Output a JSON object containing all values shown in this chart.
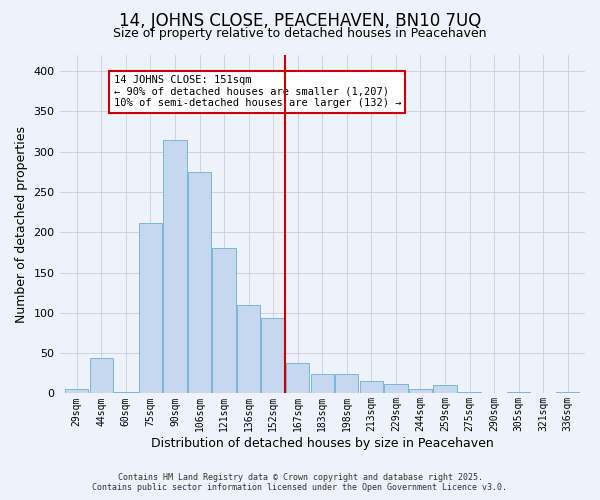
{
  "title": "14, JOHNS CLOSE, PEACEHAVEN, BN10 7UQ",
  "subtitle": "Size of property relative to detached houses in Peacehaven",
  "xlabel": "Distribution of detached houses by size in Peacehaven",
  "ylabel": "Number of detached properties",
  "bar_values": [
    5,
    44,
    2,
    212,
    315,
    275,
    180,
    110,
    93,
    38,
    24,
    24,
    15,
    12,
    5,
    10,
    2,
    0,
    2,
    0,
    2
  ],
  "bar_labels": [
    "29sqm",
    "44sqm",
    "60sqm",
    "75sqm",
    "90sqm",
    "106sqm",
    "121sqm",
    "136sqm",
    "152sqm",
    "167sqm",
    "183sqm",
    "198sqm",
    "213sqm",
    "229sqm",
    "244sqm",
    "259sqm",
    "275sqm",
    "290sqm",
    "305sqm",
    "321sqm",
    "336sqm"
  ],
  "bar_color": "#c5d8ed",
  "bar_edge_color": "#6baed6",
  "vline_color": "#cc0000",
  "ylim": [
    0,
    420
  ],
  "annotation_text": "14 JOHNS CLOSE: 151sqm\n← 90% of detached houses are smaller (1,207)\n10% of semi-detached houses are larger (132) →",
  "annotation_box_color": "#ffffff",
  "annotation_box_edge": "#cc0000",
  "footer_line1": "Contains HM Land Registry data © Crown copyright and database right 2025.",
  "footer_line2": "Contains public sector information licensed under the Open Government Licence v3.0.",
  "background_color": "#eef2fa",
  "title_fontsize": 12,
  "subtitle_fontsize": 9,
  "axis_label_fontsize": 9,
  "tick_fontsize": 7,
  "annotation_fontsize": 7.5
}
